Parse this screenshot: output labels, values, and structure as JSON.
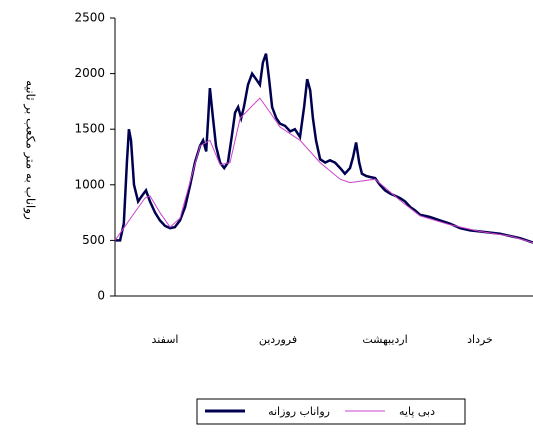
{
  "chart_data": {
    "type": "line",
    "y_label": "رواناب به متر مکعب بر ثانیه",
    "month_labels": [
      "اسفند",
      "فروردین",
      "اردیبهشت",
      "خرداد"
    ],
    "xlim": [
      0,
      122.9
    ],
    "ylim": [
      0,
      2500
    ],
    "yticks": [
      0,
      500,
      1000,
      1500,
      2000,
      2500
    ],
    "series": [
      {
        "name": "رواناب روزانه",
        "color": "#000050",
        "x": [
          0,
          1.5,
          2.6,
          3.5,
          4.1,
          4.7,
          5.6,
          6.8,
          7.9,
          9.1,
          10.3,
          11.8,
          13.2,
          14.7,
          16.2,
          17.6,
          19.1,
          20.6,
          22.1,
          23.5,
          25,
          25.9,
          26.8,
          27.4,
          27.9,
          28.8,
          29.7,
          30.9,
          32.1,
          33.2,
          34.4,
          35.3,
          36.2,
          37.1,
          37.9,
          39.1,
          40.3,
          41.5,
          42.6,
          43.5,
          44.4,
          45.3,
          46.2,
          47.4,
          48.5,
          50,
          51.5,
          52.9,
          54.4,
          55.6,
          56.5,
          57.4,
          58.2,
          59.1,
          60.3,
          61.8,
          63.2,
          64.7,
          66.2,
          67.6,
          69.1,
          70,
          70.9,
          71.8,
          72.6,
          73.8,
          75,
          76.5,
          77.9,
          79.4,
          80.9,
          82.4,
          83.8,
          85.3,
          86.8,
          88.2,
          89.7,
          91.2,
          92.6,
          95.6,
          98.5,
          101.5,
          104.4,
          107.4,
          110.3,
          113.2,
          116.2,
          119.1,
          122.9
        ],
        "values": [
          500,
          500,
          650,
          1200,
          1500,
          1400,
          1000,
          850,
          900,
          950,
          850,
          750,
          680,
          630,
          610,
          620,
          680,
          800,
          1000,
          1200,
          1350,
          1400,
          1300,
          1600,
          1870,
          1600,
          1350,
          1200,
          1150,
          1200,
          1450,
          1650,
          1700,
          1600,
          1700,
          1900,
          2000,
          1950,
          1900,
          2100,
          2180,
          1950,
          1700,
          1600,
          1550,
          1530,
          1480,
          1500,
          1430,
          1700,
          1950,
          1850,
          1600,
          1400,
          1230,
          1200,
          1220,
          1200,
          1150,
          1100,
          1150,
          1250,
          1380,
          1200,
          1100,
          1080,
          1070,
          1060,
          1000,
          950,
          920,
          900,
          880,
          850,
          800,
          770,
          730,
          720,
          710,
          680,
          650,
          610,
          590,
          580,
          570,
          560,
          540,
          520,
          480
        ]
      },
      {
        "name": "دبی پایه",
        "color": "#cc44cc",
        "x": [
          0,
          8.8,
          10.3,
          13.2,
          16.2,
          19.1,
          25,
          27.9,
          30.9,
          33.8,
          36.8,
          42.6,
          45.6,
          48.5,
          54.4,
          60.3,
          66.2,
          69.1,
          76.5,
          83.8,
          89.7,
          98.5,
          107.4,
          116.2,
          122.9
        ],
        "values": [
          500,
          880,
          900,
          750,
          620,
          700,
          1350,
          1400,
          1180,
          1200,
          1600,
          1780,
          1650,
          1520,
          1400,
          1200,
          1050,
          1020,
          1050,
          860,
          720,
          640,
          580,
          540,
          480
        ]
      }
    ]
  }
}
